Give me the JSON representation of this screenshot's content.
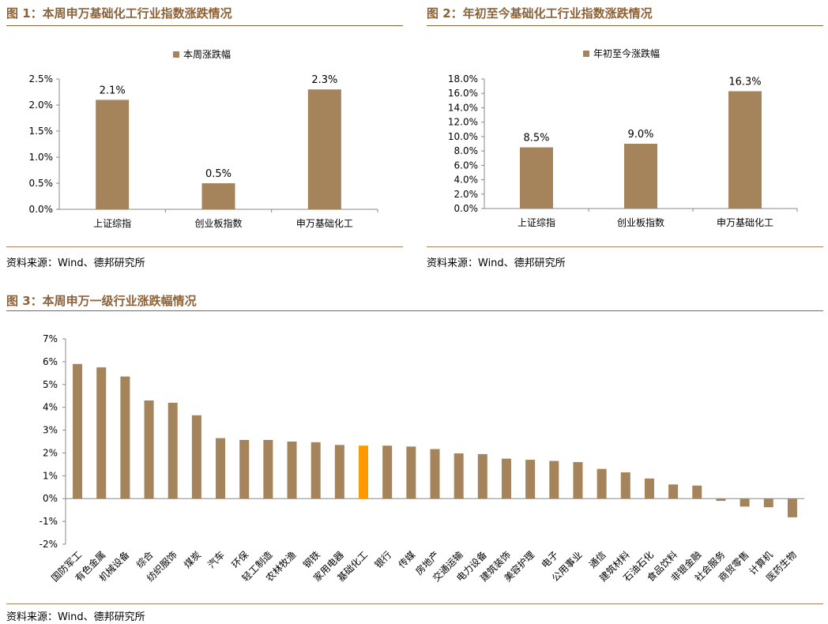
{
  "figures": {
    "fig1": {
      "title": "图 1：本周申万基础化工行业指数涨跌情况",
      "source": "资料来源：Wind、德邦研究所"
    },
    "fig2": {
      "title": "图 2：年初至今基础化工行业指数涨跌情况",
      "source": "资料来源：Wind、德邦研究所"
    },
    "fig3": {
      "title": "图 3：本周申万一级行业涨跌幅情况",
      "source": "资料来源：Wind、德邦研究所"
    }
  },
  "colors": {
    "bar": "#a5835b",
    "highlight": "#ff9900",
    "title": "#8c6239",
    "axis": "#888888"
  },
  "chart_data": [
    {
      "type": "bar",
      "title": "",
      "legend": [
        "本周涨跌幅"
      ],
      "legend_position": "top",
      "categories": [
        "上证综指",
        "创业板指数",
        "申万基础化工"
      ],
      "values": [
        2.1,
        0.5,
        2.3
      ],
      "data_labels": [
        "2.1%",
        "0.5%",
        "2.3%"
      ],
      "ylim": [
        0,
        2.5
      ],
      "yticks": [
        "0.0%",
        "0.5%",
        "1.0%",
        "1.5%",
        "2.0%",
        "2.5%"
      ],
      "grid": false
    },
    {
      "type": "bar",
      "title": "",
      "legend": [
        "年初至今涨跌幅"
      ],
      "legend_position": "top",
      "categories": [
        "上证综指",
        "创业板指数",
        "申万基础化工"
      ],
      "values": [
        8.5,
        9.0,
        16.3
      ],
      "data_labels": [
        "8.5%",
        "9.0%",
        "16.3%"
      ],
      "ylim": [
        0,
        18
      ],
      "yticks": [
        "0.0%",
        "2.0%",
        "4.0%",
        "6.0%",
        "8.0%",
        "10.0%",
        "12.0%",
        "14.0%",
        "16.0%",
        "18.0%"
      ],
      "grid": false
    },
    {
      "type": "bar",
      "title": "",
      "highlight_category": "基础化工",
      "categories": [
        "国防军工",
        "有色金属",
        "机械设备",
        "综合",
        "纺织服饰",
        "煤炭",
        "汽车",
        "环保",
        "轻工制造",
        "农林牧渔",
        "钢铁",
        "家用电器",
        "基础化工",
        "银行",
        "传媒",
        "房地产",
        "交通运输",
        "电力设备",
        "建筑装饰",
        "美容护理",
        "电子",
        "公用事业",
        "通信",
        "建筑材料",
        "石油石化",
        "食品饮料",
        "非银金融",
        "社会服务",
        "商贸零售",
        "计算机",
        "医药生物"
      ],
      "values": [
        5.9,
        5.75,
        5.35,
        4.3,
        4.2,
        3.65,
        2.65,
        2.57,
        2.57,
        2.5,
        2.47,
        2.35,
        2.32,
        2.32,
        2.28,
        2.17,
        1.98,
        1.95,
        1.75,
        1.7,
        1.65,
        1.6,
        1.3,
        1.15,
        0.88,
        0.62,
        0.57,
        -0.1,
        -0.35,
        -0.38,
        -0.82
      ],
      "ylim": [
        -2,
        7
      ],
      "yticks": [
        "-2%",
        "-1%",
        "0%",
        "1%",
        "2%",
        "3%",
        "4%",
        "5%",
        "6%",
        "7%"
      ],
      "grid": false
    }
  ]
}
